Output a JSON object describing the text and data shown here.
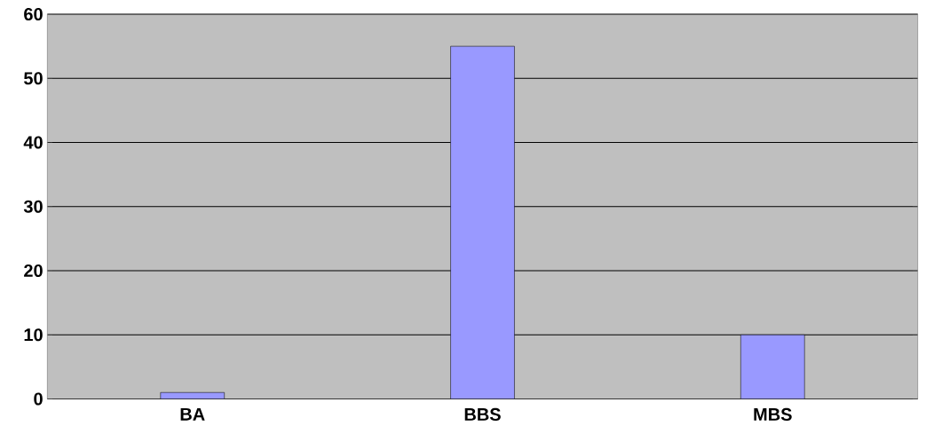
{
  "chart_data": {
    "type": "bar",
    "categories": [
      "BA",
      "BBS",
      "MBS"
    ],
    "values": [
      1,
      55,
      10
    ],
    "color": "#9999ff",
    "ylim": [
      0,
      60
    ],
    "yticks": [
      0,
      10,
      20,
      30,
      40,
      50,
      60
    ],
    "grid": "y"
  }
}
